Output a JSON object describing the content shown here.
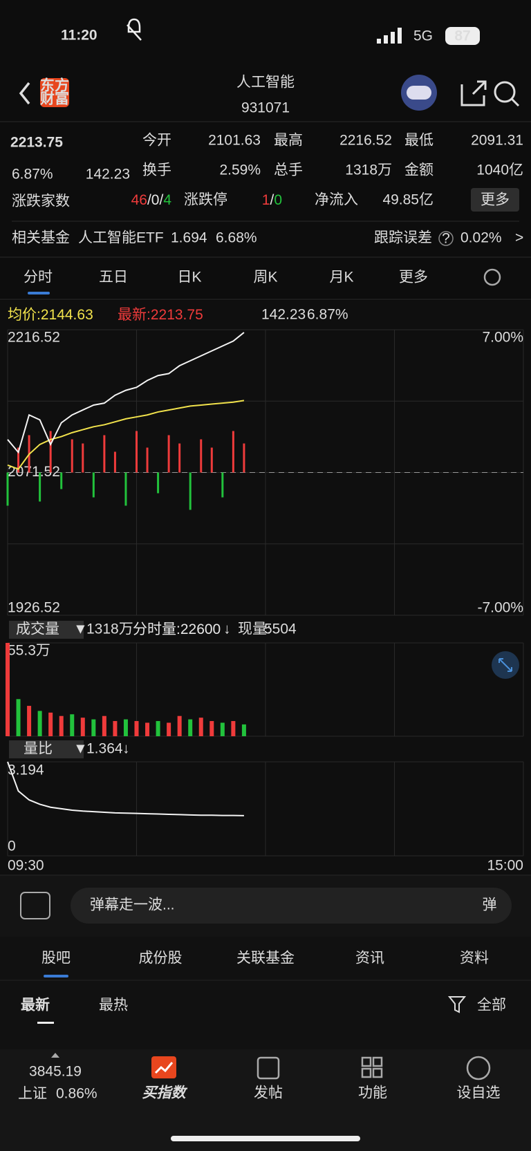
{
  "status": {
    "time": "11:20",
    "network": "5G",
    "battery": "87"
  },
  "header": {
    "logo_top": "东方",
    "logo_bottom": "财富",
    "title": "人工智能",
    "code": "931071"
  },
  "quote": {
    "price": "2213.75",
    "change_pct": "6.87%",
    "change": "142.23",
    "row1": [
      {
        "label": "今开",
        "value": "2101.63"
      },
      {
        "label": "最高",
        "value": "2216.52"
      },
      {
        "label": "最低",
        "value": "2091.31"
      }
    ],
    "row2": [
      {
        "label": "换手",
        "value": "2.59%"
      },
      {
        "label": "总手",
        "value": "1318万"
      },
      {
        "label": "金额",
        "value": "1040亿"
      }
    ],
    "breadth": {
      "label": "涨跌家数",
      "up": "46",
      "flat": "0",
      "down": "4",
      "sep": "/"
    },
    "limit": {
      "label": "涨跌停",
      "up": "1",
      "down": "0",
      "sep": "/"
    },
    "inflow": {
      "label": "净流入",
      "value": "49.85亿"
    },
    "more": "更多"
  },
  "fund": {
    "label": "相关基金",
    "name": "人工智能ETF",
    "price": "1.694",
    "pct": "6.68%",
    "err_label": "跟踪误差",
    "help": "?",
    "err": "0.02%",
    "arrow": ">"
  },
  "tabs": [
    "分时",
    "五日",
    "日K",
    "周K",
    "月K",
    "更多"
  ],
  "intraday": {
    "avg_label": "均价:",
    "avg": "2144.63",
    "last_label": "最新:",
    "last": "2213.75",
    "change": "142.23",
    "pct": "6.87%",
    "ylim": [
      1926.52,
      2216.52
    ],
    "prev_close": 2071.52,
    "top_pct": "7.00%",
    "bottom_pct": "-7.00%",
    "xlim": [
      0,
      240
    ],
    "minutes": [
      0,
      5,
      10,
      15,
      20,
      25,
      30,
      35,
      40,
      45,
      50,
      55,
      60,
      65,
      70,
      75,
      80,
      85,
      90,
      95,
      100,
      105,
      110
    ],
    "price": [
      2105,
      2092,
      2130,
      2125,
      2100,
      2122,
      2130,
      2135,
      2140,
      2142,
      2150,
      2155,
      2158,
      2165,
      2170,
      2172,
      2180,
      2185,
      2190,
      2195,
      2200,
      2205,
      2213.75
    ],
    "avg_line": [
      2079,
      2075,
      2090,
      2100,
      2105,
      2108,
      2112,
      2115,
      2118,
      2120,
      2123,
      2126,
      2128,
      2130,
      2133,
      2135,
      2137,
      2139,
      2140,
      2141,
      2142,
      2143,
      2144.63
    ],
    "flow": [
      -40,
      30,
      45,
      -35,
      50,
      -20,
      40,
      35,
      -30,
      45,
      25,
      -40,
      50,
      30,
      -25,
      45,
      35,
      -45,
      40,
      30,
      -30,
      50,
      35
    ],
    "start_time": "09:30",
    "end_time": "15:00"
  },
  "volume": {
    "selector": "成交量",
    "total": "1318万",
    "period_label": "分时量:",
    "period": "22600",
    "arrow": "↓",
    "now_label": "现量:",
    "now": "5504",
    "top_label": "55.3万",
    "ylim": [
      0,
      55.3
    ],
    "values": [
      55.3,
      22,
      18,
      15,
      14,
      12,
      13,
      11,
      10,
      12,
      9,
      10,
      9,
      8,
      9,
      8,
      12,
      10,
      11,
      9,
      8,
      9,
      7
    ],
    "up": [
      true,
      false,
      true,
      false,
      true,
      true,
      false,
      true,
      false,
      true,
      true,
      false,
      true,
      true,
      false,
      true,
      true,
      false,
      true,
      true,
      false,
      true,
      false
    ]
  },
  "ratio": {
    "selector": "量比",
    "value": "1.364",
    "arrow": "↓",
    "top_label": "3.194",
    "bottom_label": "0.000",
    "ylim": [
      0,
      3.194
    ],
    "values": [
      3.194,
      2.2,
      1.9,
      1.75,
      1.65,
      1.6,
      1.55,
      1.52,
      1.5,
      1.48,
      1.46,
      1.45,
      1.44,
      1.43,
      1.42,
      1.41,
      1.4,
      1.39,
      1.38,
      1.38,
      1.37,
      1.37,
      1.364
    ]
  },
  "comment": {
    "placeholder": "弹幕走一波...",
    "button": "弹"
  },
  "section_tabs": [
    "股吧",
    "成份股",
    "关联基金",
    "资讯",
    "资料"
  ],
  "sub_tabs": {
    "newest": "最新",
    "hot": "最热",
    "filter": "全部"
  },
  "nav": {
    "index_value": "3845.19",
    "index_name": "上证",
    "index_pct": "0.86%",
    "buy": "买指数",
    "post": "发帖",
    "func": "功能",
    "watch": "设自选"
  }
}
